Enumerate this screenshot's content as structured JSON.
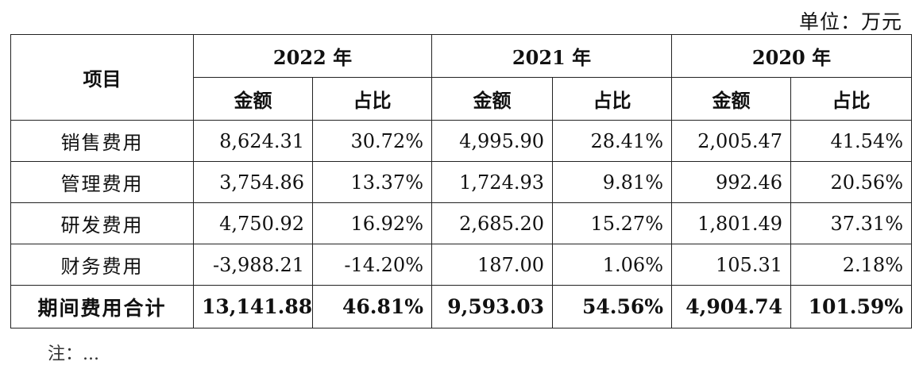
{
  "unit_label": "单位：万元",
  "header": {
    "item_label": "项目",
    "years": [
      "2022 年",
      "2021 年",
      "2020 年"
    ],
    "amount_label": "金额",
    "ratio_label": "占比"
  },
  "rows": [
    {
      "label": "销售费用",
      "v": [
        "8,624.31",
        "30.72%",
        "4,995.90",
        "28.41%",
        "2,005.47",
        "41.54%"
      ]
    },
    {
      "label": "管理费用",
      "v": [
        "3,754.86",
        "13.37%",
        "1,724.93",
        "9.81%",
        "992.46",
        "20.56%"
      ]
    },
    {
      "label": "研发费用",
      "v": [
        "4,750.92",
        "16.92%",
        "2,685.20",
        "15.27%",
        "1,801.49",
        "37.31%"
      ]
    },
    {
      "label": "财务费用",
      "v": [
        "-3,988.21",
        "-14.20%",
        "187.00",
        "1.06%",
        "105.31",
        "2.18%"
      ]
    }
  ],
  "total": {
    "label": "期间费用合计",
    "v": [
      "13,141.88",
      "46.81%",
      "9,593.03",
      "54.56%",
      "4,904.74",
      "101.59%"
    ]
  },
  "footnote": "注：..."
}
